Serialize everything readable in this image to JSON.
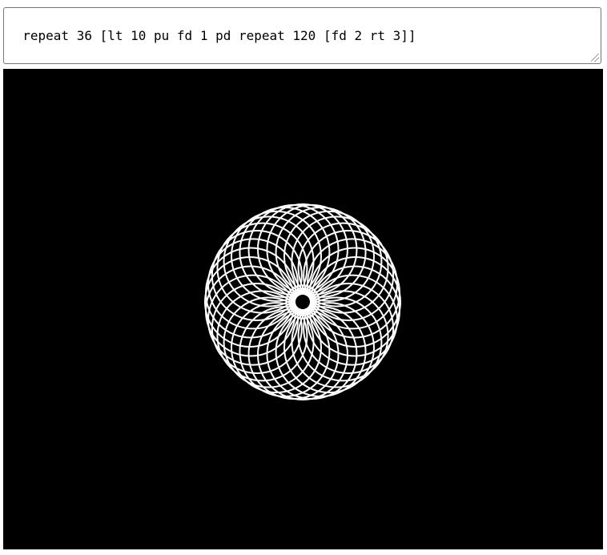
{
  "editor": {
    "code": "repeat 36 [lt 10 pu fd 1 pd repeat 120 [fd 2 rt 3]]"
  },
  "canvas": {
    "background": "#000000",
    "pen_color": "#ffffff",
    "drawing": {
      "repeat_outer": 36,
      "turn_left_deg": 10,
      "forward_penup": 1,
      "repeat_inner": 120,
      "inner_forward": 2,
      "inner_right_deg": 3
    }
  }
}
